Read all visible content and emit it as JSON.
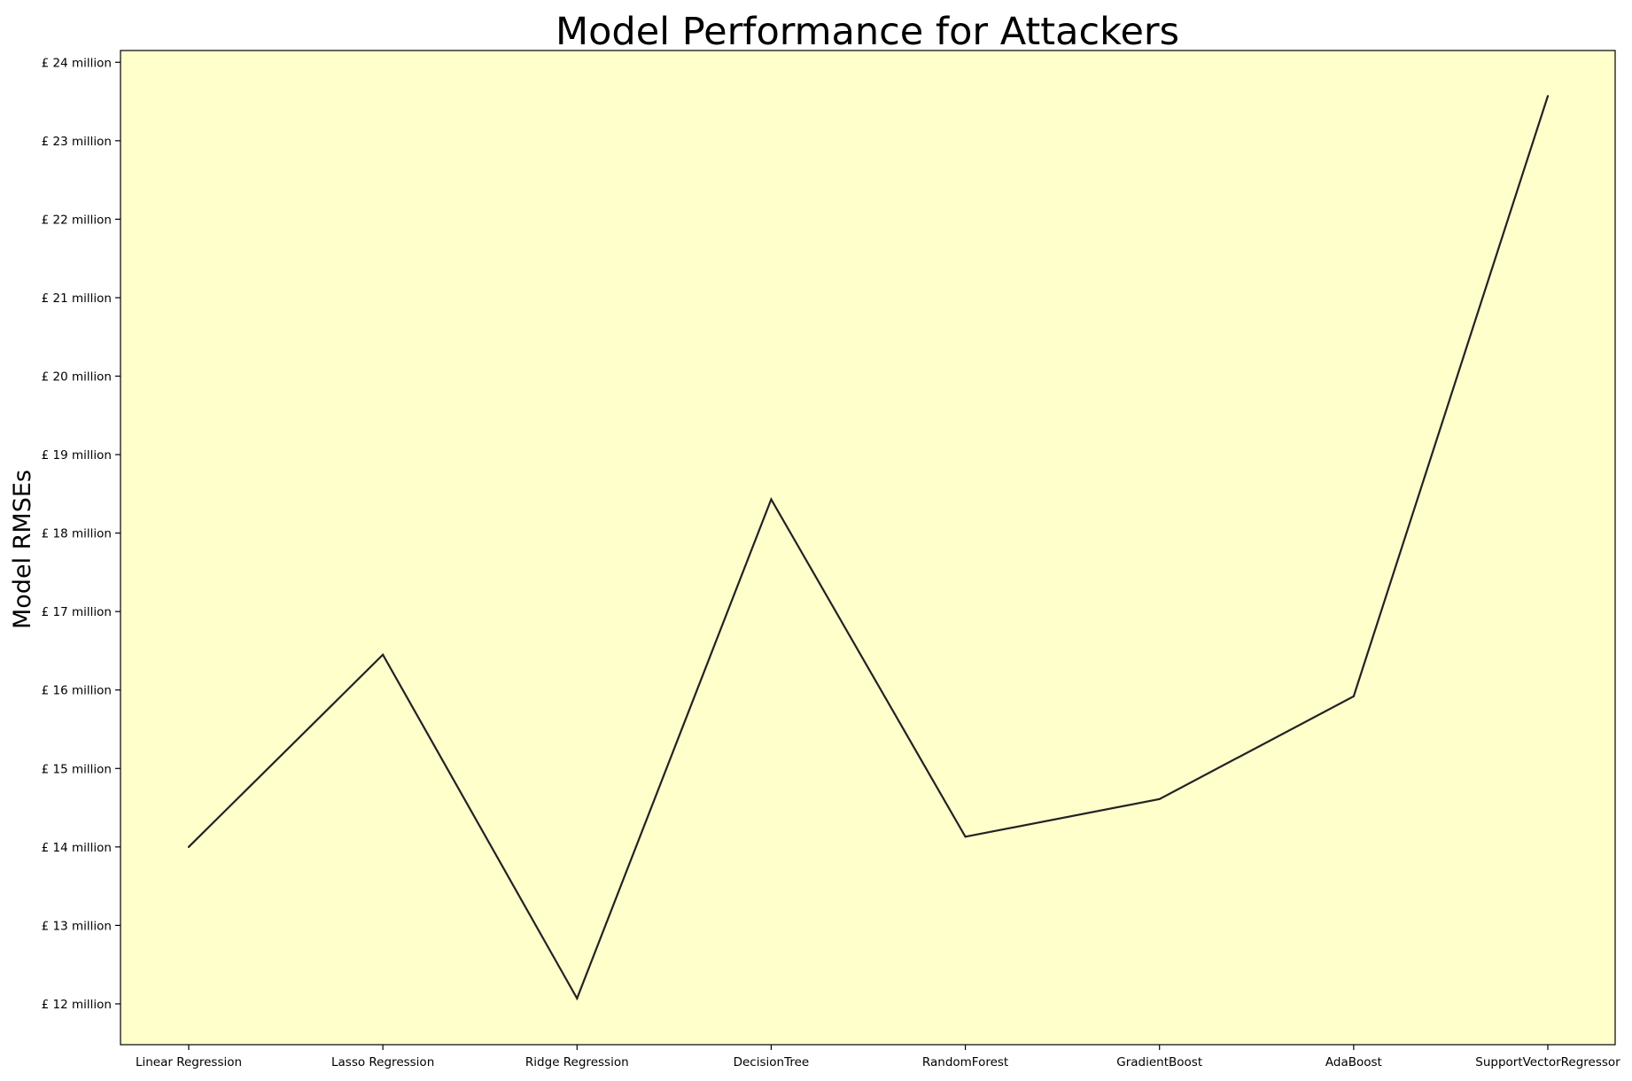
{
  "chart_data": {
    "type": "line",
    "title": "Model Performance for Attackers",
    "xlabel": "",
    "ylabel": "Model RMSEs",
    "categories": [
      "Linear Regression",
      "Lasso Regression",
      "Ridge Regression",
      "DecisionTree",
      "RandomForest",
      "GradientBoost",
      "AdaBoost",
      "SupportVectorRegressor"
    ],
    "y_unit": "£ million",
    "values": [
      14.0,
      16.45,
      12.07,
      18.43,
      14.13,
      14.61,
      15.92,
      23.57
    ],
    "ylim": [
      11.48,
      24.15
    ],
    "yticks": [
      12,
      13,
      14,
      15,
      16,
      17,
      18,
      19,
      20,
      21,
      22,
      23,
      24
    ],
    "ytick_labels": [
      "£ 12 million",
      "£ 13 million",
      "£ 14 million",
      "£ 15 million",
      "£ 16 million",
      "£ 17 million",
      "£ 18 million",
      "£ 19 million",
      "£ 20 million",
      "£ 21 million",
      "£ 22 million",
      "£ 23 million",
      "£ 24 million"
    ],
    "grid": false,
    "legend": "none",
    "colors": {
      "background": "#ffffcc",
      "line": "#222222",
      "axes": "#000000"
    }
  }
}
